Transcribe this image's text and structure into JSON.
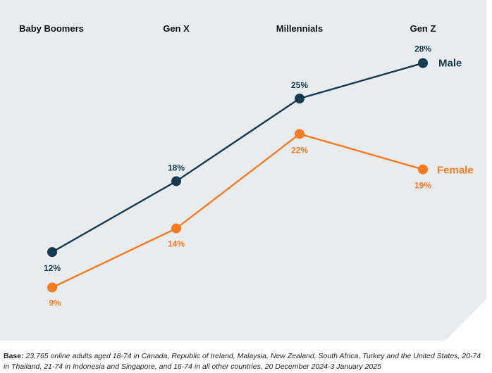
{
  "chart_data": {
    "type": "line",
    "categories": [
      "Baby Boomers",
      "Gen X",
      "Millennials",
      "Gen Z"
    ],
    "series": [
      {
        "name": "Male",
        "values": [
          12,
          18,
          25,
          28
        ],
        "labels": [
          "12%",
          "18%",
          "25%",
          "28%"
        ],
        "color": "#163a50"
      },
      {
        "name": "Female",
        "values": [
          9,
          14,
          22,
          19
        ],
        "labels": [
          "9%",
          "14%",
          "22%",
          "19%"
        ],
        "color": "#f47b20"
      }
    ],
    "background_color": "#e9ecef",
    "grid": false
  },
  "footnote": {
    "label": "Base:",
    "text": "23,765 online adults aged 18-74 in Canada, Republic of Ireland, Malaysia, New Zealand, South Africa, Turkey and the United States, 20-74 in Thailand, 21-74 in Indonesia and Singapore, and 16-74 in all other countries, 20 December 2024-3 January 2025"
  }
}
